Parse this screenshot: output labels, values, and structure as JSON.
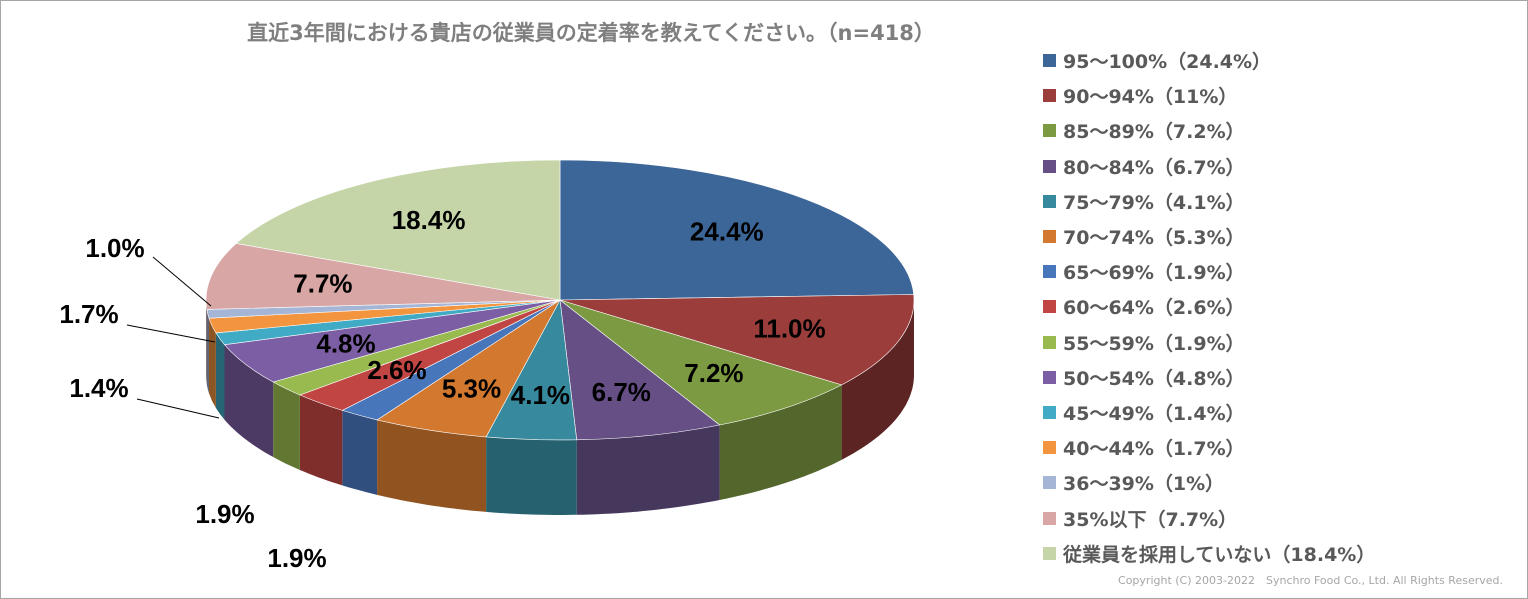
{
  "chart_data": {
    "type": "pie",
    "title": "直近3年間における貴店の従業員の定着率を教えてください。（n=418）",
    "legend_position": "right",
    "three_d": true,
    "slices": [
      {
        "name": "95～100%（24.4%）",
        "value": 24.4,
        "label": "24.4%",
        "color": "#3d6698"
      },
      {
        "name": "90～94%（11%）",
        "value": 11.0,
        "label": "11.0%",
        "color": "#9a3d3b"
      },
      {
        "name": "85～89%（7.2%）",
        "value": 7.2,
        "label": "7.2%",
        "color": "#7c9a41"
      },
      {
        "name": "80～84%（6.7%）",
        "value": 6.7,
        "label": "6.7%",
        "color": "#654f85"
      },
      {
        "name": "75～79%（4.1%）",
        "value": 4.1,
        "label": "4.1%",
        "color": "#378a9e"
      },
      {
        "name": "70～74%（5.3%）",
        "value": 5.3,
        "label": "5.3%",
        "color": "#d2782f"
      },
      {
        "name": "65～69%（1.9%）",
        "value": 1.9,
        "label": "1.9%",
        "color": "#4776bb"
      },
      {
        "name": "60～64%（2.6%）",
        "value": 2.6,
        "label": "2.6%",
        "color": "#c04543"
      },
      {
        "name": "55～59%（1.9%）",
        "value": 1.9,
        "label": "1.9%",
        "color": "#98ba4e"
      },
      {
        "name": "50～54%（4.8%）",
        "value": 4.8,
        "label": "4.8%",
        "color": "#7b5ea3"
      },
      {
        "name": "45～49%（1.4%）",
        "value": 1.4,
        "label": "1.4%",
        "color": "#41aac4"
      },
      {
        "name": "40～44%（1.7%）",
        "value": 1.7,
        "label": "1.7%",
        "color": "#f3953e"
      },
      {
        "name": "36～39%（1%）",
        "value": 1.0,
        "label": "1.0%",
        "color": "#a5b5d6"
      },
      {
        "name": "35%以下（7.7%）",
        "value": 7.7,
        "label": "7.7%",
        "color": "#d8a6a5"
      },
      {
        "name": "従業員を採用していない（18.4%）",
        "value": 18.4,
        "label": "18.4%",
        "color": "#c5d5a8"
      }
    ]
  },
  "copyright": "Copyright (C) 2003-2022　Synchro Food Co., Ltd. All Rights Reserved."
}
